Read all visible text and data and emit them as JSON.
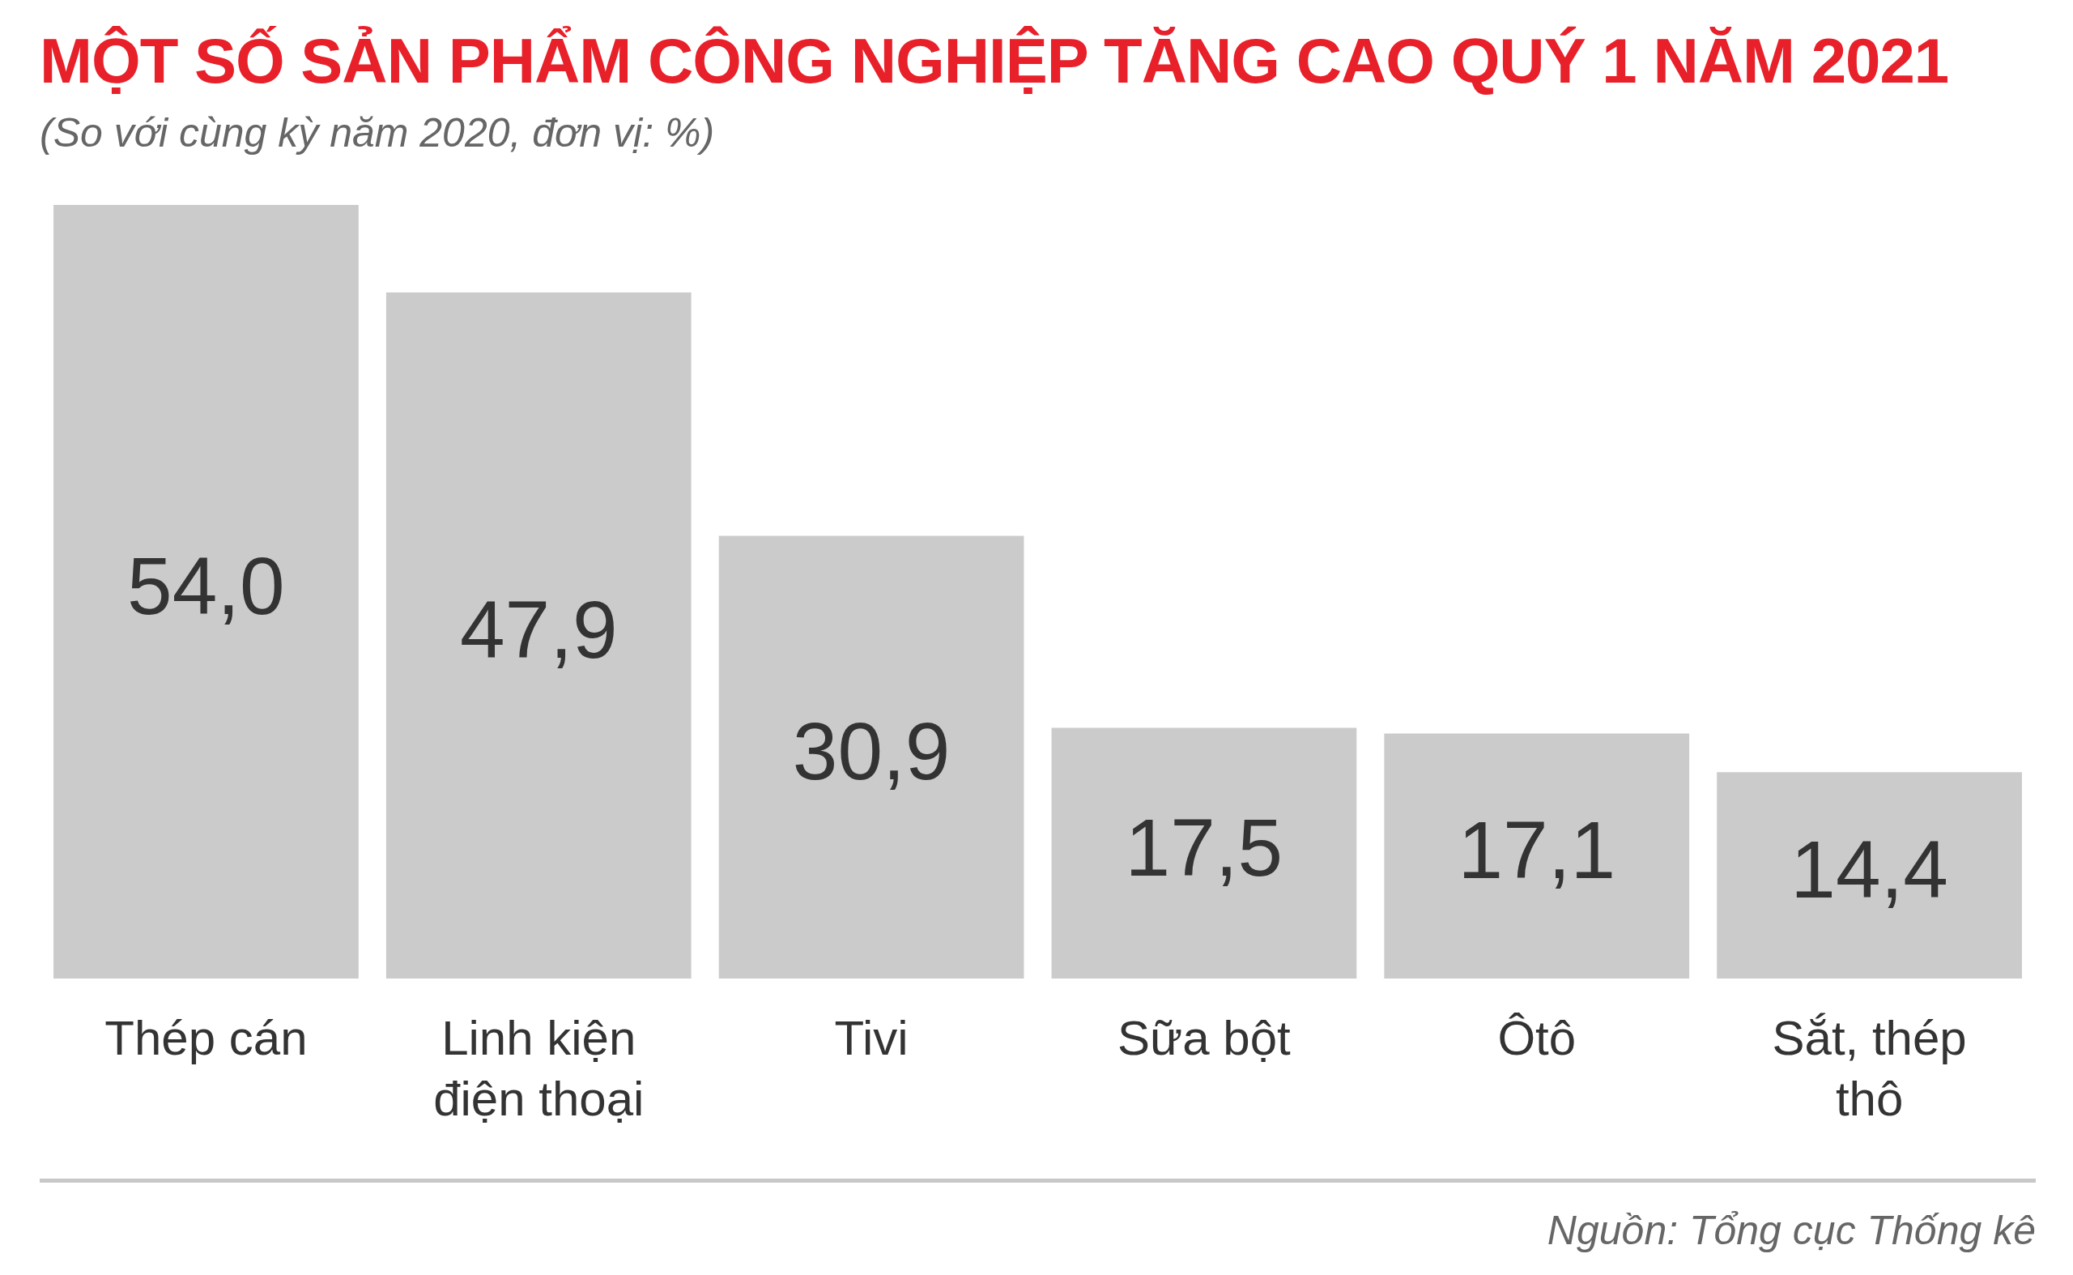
{
  "chart_data": {
    "type": "bar",
    "title": "MỘT SỐ SẢN PHẨM CÔNG NGHIỆP TĂNG CAO QUÝ 1 NĂM 2021",
    "subtitle": "(So với cùng kỳ năm 2020, đơn vị: %)",
    "categories": [
      "Thép cán",
      "Linh kiện điện thoại",
      "Tivi",
      "Sữa bột",
      "Ôtô",
      "Sắt, thép thô"
    ],
    "values": [
      54.0,
      47.9,
      30.9,
      17.5,
      17.1,
      14.4
    ],
    "value_labels": [
      "54,0",
      "47,9",
      "30,9",
      "17,5",
      "17,1",
      "14,4"
    ],
    "color": "#cccbcc",
    "grid": false,
    "legend": false,
    "tick_labels": "x",
    "annotations": [
      "Nguồn: Tổng cục Thống kê"
    ]
  }
}
